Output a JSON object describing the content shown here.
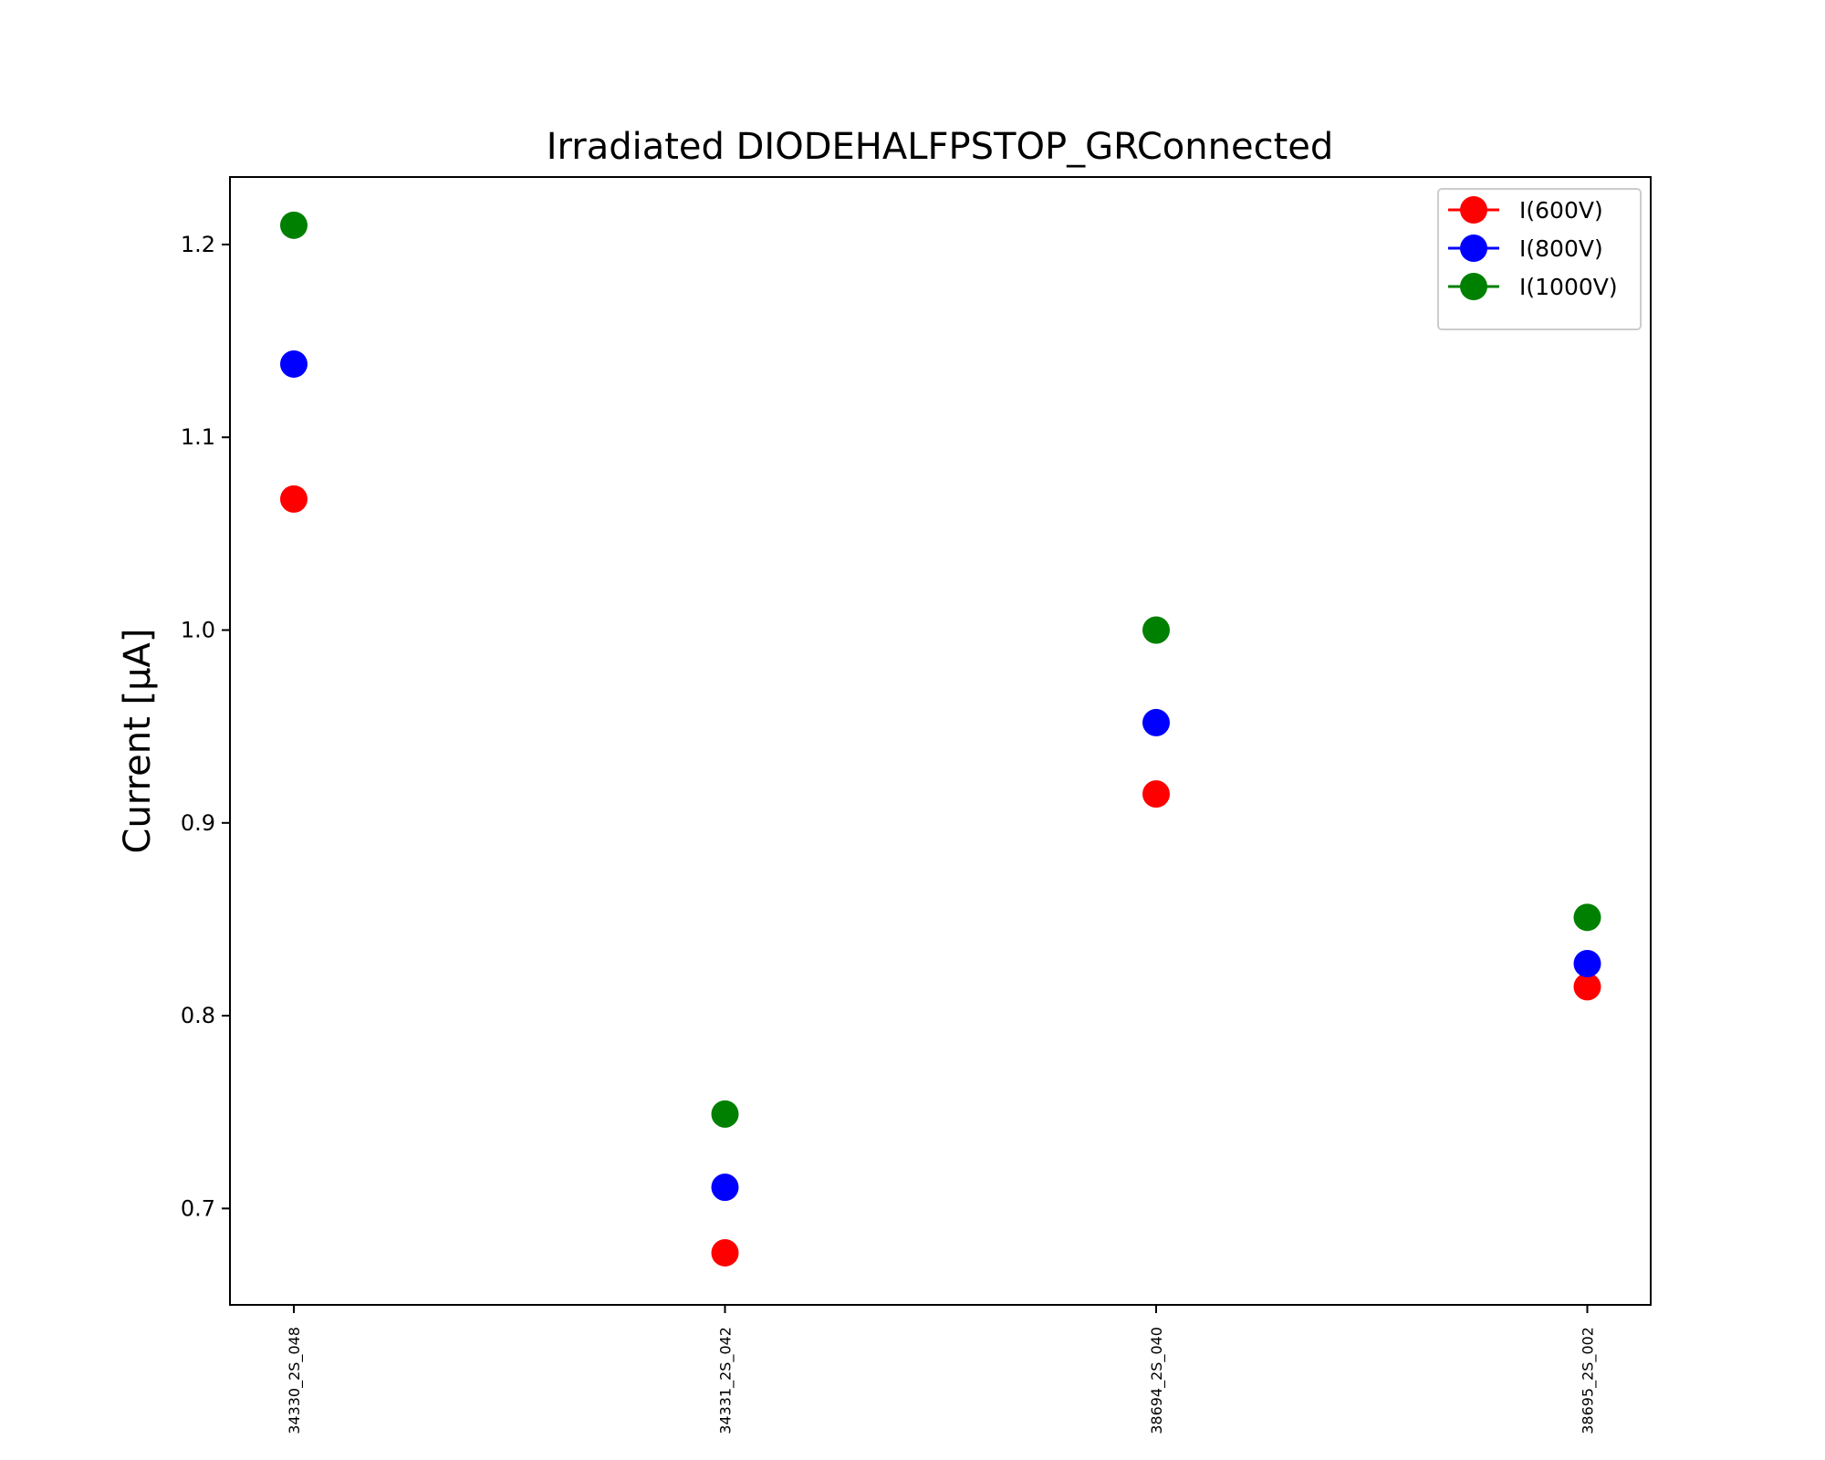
{
  "chart_data": {
    "type": "scatter",
    "title": "Irradiated DIODEHALFPSTOP_GRConnected",
    "xlabel": "",
    "ylabel": "Current [μA]",
    "ylim": [
      0.65,
      1.235
    ],
    "yticks": [
      "0.7",
      "0.8",
      "0.9",
      "1.0",
      "1.1",
      "1.2"
    ],
    "categories": [
      "34330_2S_048",
      "34331_2S_042",
      "38694_2S_040",
      "38695_2S_002"
    ],
    "legend_position": "top-right",
    "grid": false,
    "series": [
      {
        "name": "I(600V)",
        "color": "#ff0000",
        "values": [
          1.068,
          0.677,
          0.915,
          0.815
        ]
      },
      {
        "name": "I(800V)",
        "color": "#0000ff",
        "values": [
          1.138,
          0.711,
          0.952,
          0.827
        ]
      },
      {
        "name": "I(1000V)",
        "color": "#008000",
        "values": [
          1.21,
          0.749,
          1.0,
          0.851
        ]
      }
    ]
  }
}
